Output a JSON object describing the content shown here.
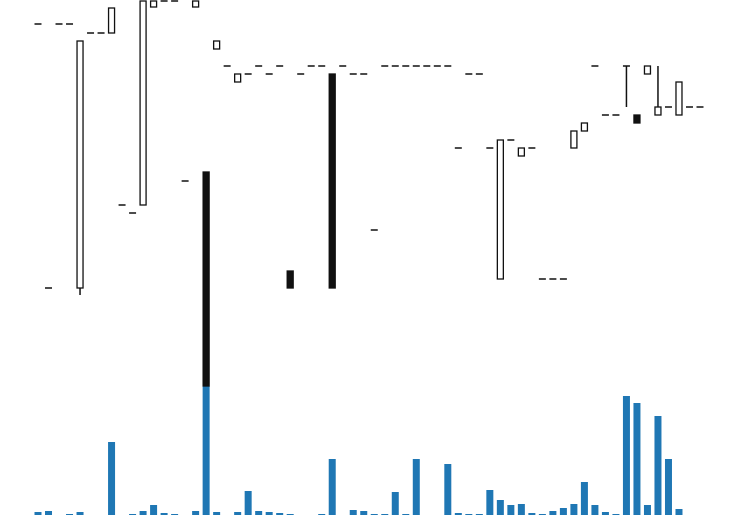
{
  "chart_data": {
    "type": "candlestick",
    "open": [
      37.6,
      11.2,
      37.6,
      37.6,
      11.2,
      36.7,
      36.7,
      36.7,
      19.5,
      18.7,
      19.5,
      39.3,
      39.9,
      39.9,
      21.9,
      39.3,
      22.8,
      35.1,
      33.4,
      31.8,
      32.6,
      33.4,
      32.6,
      33.4,
      12.9,
      32.6,
      33.4,
      33.4,
      32.6,
      33.4,
      32.6,
      32.6,
      17.0,
      33.4,
      33.4,
      33.4,
      33.4,
      33.4,
      33.4,
      33.4,
      25.2,
      32.6,
      32.6,
      25.2,
      12.1,
      26.0,
      24.4,
      25.2,
      12.1,
      12.1,
      12.1,
      25.2,
      26.9,
      33.4,
      28.5,
      28.5,
      33.4,
      28.5,
      32.6,
      28.5,
      29.3,
      28.5,
      29.3,
      29.3
    ],
    "high": [
      37.6,
      11.2,
      37.6,
      37.6,
      35.9,
      36.7,
      36.7,
      39.2,
      19.5,
      18.7,
      39.9,
      39.9,
      39.9,
      39.9,
      21.9,
      39.9,
      22.8,
      35.9,
      33.4,
      32.6,
      32.6,
      33.4,
      32.6,
      33.4,
      12.9,
      32.6,
      33.4,
      33.4,
      32.6,
      33.4,
      32.6,
      32.6,
      17.0,
      33.4,
      33.4,
      33.4,
      33.4,
      33.4,
      33.4,
      33.4,
      25.2,
      32.6,
      32.6,
      25.2,
      26.0,
      26.0,
      25.2,
      25.2,
      12.1,
      12.1,
      12.1,
      26.9,
      27.7,
      33.4,
      28.5,
      28.5,
      33.4,
      28.5,
      33.4,
      33.4,
      29.3,
      31.8,
      29.3,
      29.3
    ],
    "low": [
      37.6,
      11.2,
      37.6,
      37.6,
      10.5,
      36.7,
      36.7,
      36.7,
      19.5,
      18.7,
      19.5,
      39.3,
      39.9,
      39.9,
      21.9,
      39.3,
      1.4,
      35.1,
      33.4,
      31.8,
      32.6,
      33.4,
      32.6,
      33.4,
      11.2,
      32.6,
      33.4,
      33.4,
      11.2,
      33.4,
      32.6,
      32.6,
      17.0,
      33.4,
      33.4,
      33.4,
      33.4,
      33.4,
      33.4,
      33.4,
      25.2,
      32.6,
      32.6,
      25.2,
      12.1,
      26.0,
      24.4,
      25.2,
      12.1,
      12.1,
      12.1,
      25.2,
      26.9,
      33.4,
      28.5,
      28.5,
      29.3,
      27.7,
      32.6,
      28.5,
      29.3,
      28.5,
      29.3,
      29.3
    ],
    "close": [
      37.6,
      11.2,
      37.6,
      37.6,
      35.9,
      36.7,
      36.7,
      39.2,
      19.5,
      18.7,
      39.9,
      39.9,
      39.9,
      39.9,
      21.9,
      39.9,
      1.4,
      35.9,
      33.4,
      32.6,
      32.6,
      33.4,
      32.6,
      33.4,
      11.2,
      32.6,
      33.4,
      33.4,
      11.2,
      33.4,
      32.6,
      32.6,
      17.0,
      33.4,
      33.4,
      33.4,
      33.4,
      33.4,
      33.4,
      33.4,
      25.2,
      32.6,
      32.6,
      25.2,
      26.0,
      26.0,
      25.2,
      25.2,
      12.1,
      12.1,
      12.1,
      26.9,
      27.7,
      33.4,
      28.5,
      28.5,
      33.4,
      27.7,
      33.4,
      29.3,
      29.3,
      31.8,
      29.3,
      29.3
    ],
    "volume": [
      3,
      4,
      0,
      1,
      3,
      0,
      0,
      73,
      0,
      1,
      4,
      10,
      2,
      1,
      0,
      4,
      129,
      3,
      0,
      3,
      24,
      4,
      3,
      2,
      1,
      0,
      0,
      1,
      56,
      0,
      5,
      4,
      1,
      1,
      23,
      1,
      56,
      0,
      0,
      51,
      2,
      1,
      1,
      25,
      15,
      10,
      11,
      2,
      1,
      4,
      7,
      11,
      33,
      10,
      3,
      1,
      119,
      112,
      10,
      99,
      56,
      6,
      0,
      0
    ],
    "ylim": [
      0,
      40
    ],
    "volume_ylim": [
      0,
      130
    ],
    "up_color": "#ffffff",
    "down_color": "#111111",
    "edge_color": "#111111",
    "volume_color": "#1f77b4"
  }
}
